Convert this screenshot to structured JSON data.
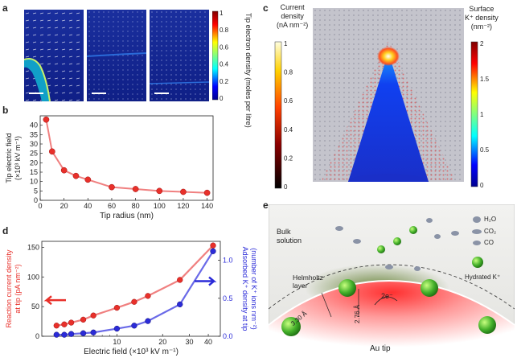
{
  "panel_labels": {
    "a": "a",
    "b": "b",
    "c": "c",
    "d": "d",
    "e": "e"
  },
  "panel_a": {
    "colorbar_title": "Tip electron density (moles per litre)",
    "colorbar_ticks": [
      "1",
      "0.8",
      "0.6",
      "0.4",
      "0.2",
      "0"
    ]
  },
  "panel_c": {
    "left_bar_title_lines": [
      "Current",
      "density",
      "(nA nm⁻²)"
    ],
    "left_bar_ticks": [
      "1",
      "0.8",
      "0.6",
      "0.4",
      "0.2",
      "0"
    ],
    "right_bar_title_lines": [
      "Surface",
      "K⁺ density",
      "(nm⁻²)"
    ],
    "right_bar_ticks": [
      "2",
      "1.5",
      "1",
      "0.5",
      "0"
    ]
  },
  "panel_e": {
    "bulk_label_lines": [
      "Bulk",
      "solution"
    ],
    "helmholtz_lines": [
      "Helmholtz",
      "layer"
    ],
    "dist1": "3.30 Å",
    "dist2": "2.76 Å",
    "electron": "2e⁻",
    "au_tip": "Au tip",
    "legend": [
      "H₂O",
      "CO₂",
      "CO",
      "Hydrated K⁺"
    ]
  },
  "colors": {
    "red": "#e8302a",
    "blue": "#2b2bd8",
    "curve_red": "#f08080",
    "curve_blue": "#6a6ae8"
  },
  "chart_data": [
    {
      "type": "scatter",
      "panel": "b",
      "xlabel": "Tip radius (nm)",
      "ylabel_lines": [
        "Tip electric field",
        "(×10³ kV m⁻¹)"
      ],
      "xlim": [
        0,
        145
      ],
      "ylim": [
        0,
        45
      ],
      "xticks": [
        0,
        20,
        40,
        60,
        80,
        100,
        120,
        140
      ],
      "yticks": [
        0,
        5,
        10,
        15,
        20,
        25,
        30,
        35,
        40
      ],
      "x": [
        5,
        10,
        20,
        30,
        40,
        60,
        80,
        100,
        120,
        140
      ],
      "y": [
        43,
        26,
        16,
        13,
        11,
        7,
        6,
        5,
        4.5,
        4
      ]
    },
    {
      "type": "scatter",
      "panel": "d",
      "xlabel": "Electric field (×10³ kV m⁻¹)",
      "xscale": "log",
      "xlim": [
        3.2,
        48
      ],
      "xticks": [
        10,
        20,
        30,
        40
      ],
      "y_left_label_lines": [
        "Reaction current density",
        "at tip (pA nm⁻²)"
      ],
      "y_right_label_lines": [
        "Adsorbed K⁺ density at tip",
        "(number of K⁺ ions nm⁻²)"
      ],
      "ylim_left": [
        0,
        160
      ],
      "yticks_left": [
        0,
        50,
        100,
        150
      ],
      "ylim_right": [
        0,
        1.25
      ],
      "yticks_right": [
        0,
        0.5,
        1.0
      ],
      "series": [
        {
          "axis": "left",
          "x": [
            4,
            4.5,
            5,
            6,
            7,
            10,
            13,
            16,
            26,
            43
          ],
          "y": [
            18,
            20,
            23,
            28,
            35,
            48,
            58,
            68,
            95,
            153
          ]
        },
        {
          "axis": "right",
          "x": [
            4,
            4.5,
            5,
            6,
            7,
            10,
            13,
            16,
            26,
            43
          ],
          "y": [
            0.02,
            0.02,
            0.03,
            0.04,
            0.05,
            0.1,
            0.14,
            0.2,
            0.42,
            1.12
          ]
        }
      ]
    }
  ]
}
